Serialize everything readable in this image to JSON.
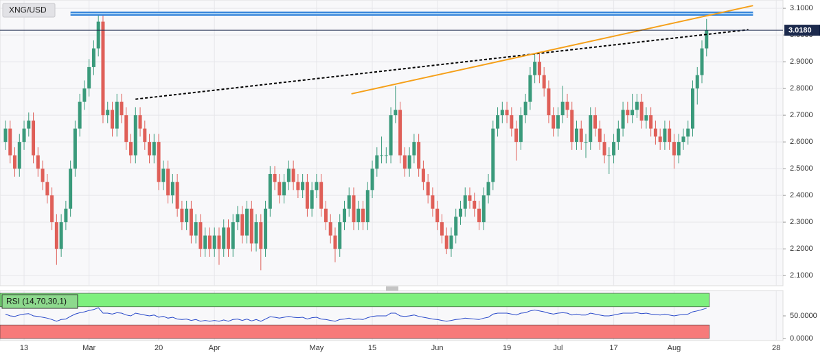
{
  "chart_data": {
    "type": "candlestick",
    "title": "XNG/USD",
    "categories": [
      null,
      null,
      null,
      null,
      "13",
      null,
      null,
      null,
      null,
      null,
      null,
      null,
      null,
      null,
      null,
      null,
      null,
      null,
      "Mar",
      null,
      null,
      null,
      null,
      null,
      null,
      null,
      null,
      null,
      null,
      null,
      null,
      null,
      null,
      "20",
      null,
      null,
      null,
      null,
      null,
      null,
      null,
      null,
      null,
      null,
      null,
      "Apr",
      null,
      null,
      null,
      null,
      null,
      null,
      null,
      null,
      null,
      null,
      null,
      null,
      null,
      null,
      null,
      null,
      null,
      null,
      null,
      null,
      null,
      "May",
      null,
      null,
      null,
      null,
      null,
      null,
      null,
      null,
      null,
      null,
      null,
      "15",
      null,
      null,
      null,
      null,
      null,
      null,
      null,
      null,
      null,
      null,
      null,
      null,
      null,
      "Jun",
      null,
      null,
      null,
      null,
      null,
      null,
      null,
      null,
      null,
      null,
      null,
      null,
      null,
      null,
      "19",
      null,
      null,
      null,
      null,
      null,
      null,
      null,
      null,
      null,
      null,
      "Jul",
      null,
      null,
      null,
      null,
      null,
      null,
      null,
      null,
      null,
      null,
      null,
      "17",
      null,
      null,
      null,
      null,
      null,
      null,
      null,
      null,
      null,
      null,
      null,
      null,
      "Aug",
      null,
      null,
      null,
      null,
      null,
      null,
      null,
      null,
      null,
      null,
      null,
      null,
      null,
      null,
      null,
      null,
      null,
      null,
      null,
      null,
      null,
      "28",
      null
    ],
    "ohlc": [
      [
        2.6,
        2.68,
        2.57,
        2.65
      ],
      [
        2.65,
        2.68,
        2.52,
        2.55
      ],
      [
        2.55,
        2.58,
        2.47,
        2.5
      ],
      [
        2.5,
        2.63,
        2.47,
        2.6
      ],
      [
        2.6,
        2.68,
        2.57,
        2.65
      ],
      [
        2.65,
        2.71,
        2.62,
        2.68
      ],
      [
        2.68,
        2.71,
        2.52,
        2.55
      ],
      [
        2.55,
        2.58,
        2.47,
        2.5
      ],
      [
        2.5,
        2.53,
        2.42,
        2.45
      ],
      [
        2.45,
        2.48,
        2.37,
        2.4
      ],
      [
        2.4,
        2.43,
        2.27,
        2.3
      ],
      [
        2.3,
        2.33,
        2.14,
        2.2
      ],
      [
        2.2,
        2.33,
        2.17,
        2.3
      ],
      [
        2.3,
        2.38,
        2.27,
        2.35
      ],
      [
        2.35,
        2.53,
        2.32,
        2.5
      ],
      [
        2.5,
        2.68,
        2.47,
        2.65
      ],
      [
        2.65,
        2.78,
        2.62,
        2.75
      ],
      [
        2.75,
        2.83,
        2.72,
        2.8
      ],
      [
        2.8,
        2.91,
        2.77,
        2.88
      ],
      [
        2.88,
        2.98,
        2.85,
        2.95
      ],
      [
        2.95,
        3.08,
        2.92,
        3.05
      ],
      [
        3.05,
        3.08,
        2.67,
        2.7
      ],
      [
        2.7,
        2.75,
        2.67,
        2.72
      ],
      [
        2.72,
        2.75,
        2.62,
        2.65
      ],
      [
        2.65,
        2.78,
        2.62,
        2.75
      ],
      [
        2.75,
        2.78,
        2.67,
        2.7
      ],
      [
        2.7,
        2.73,
        2.57,
        2.6
      ],
      [
        2.6,
        2.63,
        2.52,
        2.55
      ],
      [
        2.55,
        2.73,
        2.52,
        2.7
      ],
      [
        2.7,
        2.73,
        2.62,
        2.65
      ],
      [
        2.65,
        2.68,
        2.57,
        2.6
      ],
      [
        2.6,
        2.63,
        2.52,
        2.55
      ],
      [
        2.55,
        2.63,
        2.52,
        2.6
      ],
      [
        2.6,
        2.63,
        2.42,
        2.45
      ],
      [
        2.45,
        2.53,
        2.42,
        2.5
      ],
      [
        2.5,
        2.53,
        2.37,
        2.4
      ],
      [
        2.4,
        2.48,
        2.37,
        2.45
      ],
      [
        2.45,
        2.48,
        2.32,
        2.35
      ],
      [
        2.35,
        2.38,
        2.27,
        2.3
      ],
      [
        2.3,
        2.38,
        2.27,
        2.35
      ],
      [
        2.35,
        2.38,
        2.22,
        2.25
      ],
      [
        2.25,
        2.33,
        2.22,
        2.3
      ],
      [
        2.3,
        2.33,
        2.17,
        2.2
      ],
      [
        2.2,
        2.28,
        2.17,
        2.25
      ],
      [
        2.25,
        2.28,
        2.17,
        2.2
      ],
      [
        2.2,
        2.28,
        2.17,
        2.25
      ],
      [
        2.25,
        2.28,
        2.14,
        2.2
      ],
      [
        2.2,
        2.31,
        2.17,
        2.28
      ],
      [
        2.28,
        2.31,
        2.17,
        2.2
      ],
      [
        2.2,
        2.33,
        2.17,
        2.3
      ],
      [
        2.3,
        2.36,
        2.27,
        2.33
      ],
      [
        2.33,
        2.36,
        2.22,
        2.25
      ],
      [
        2.25,
        2.38,
        2.22,
        2.35
      ],
      [
        2.35,
        2.38,
        2.19,
        2.22
      ],
      [
        2.22,
        2.33,
        2.19,
        2.3
      ],
      [
        2.3,
        2.33,
        2.12,
        2.2
      ],
      [
        2.2,
        2.38,
        2.17,
        2.35
      ],
      [
        2.35,
        2.51,
        2.32,
        2.48
      ],
      [
        2.48,
        2.51,
        2.42,
        2.45
      ],
      [
        2.45,
        2.48,
        2.37,
        2.4
      ],
      [
        2.4,
        2.48,
        2.37,
        2.45
      ],
      [
        2.45,
        2.53,
        2.42,
        2.5
      ],
      [
        2.5,
        2.53,
        2.42,
        2.45
      ],
      [
        2.45,
        2.48,
        2.39,
        2.42
      ],
      [
        2.42,
        2.48,
        2.39,
        2.45
      ],
      [
        2.45,
        2.48,
        2.32,
        2.35
      ],
      [
        2.35,
        2.45,
        2.32,
        2.42
      ],
      [
        2.42,
        2.48,
        2.39,
        2.45
      ],
      [
        2.45,
        2.48,
        2.32,
        2.35
      ],
      [
        2.35,
        2.38,
        2.27,
        2.3
      ],
      [
        2.3,
        2.33,
        2.22,
        2.25
      ],
      [
        2.25,
        2.28,
        2.15,
        2.2
      ],
      [
        2.2,
        2.33,
        2.17,
        2.3
      ],
      [
        2.3,
        2.38,
        2.27,
        2.35
      ],
      [
        2.35,
        2.43,
        2.32,
        2.4
      ],
      [
        2.4,
        2.43,
        2.27,
        2.3
      ],
      [
        2.3,
        2.38,
        2.27,
        2.35
      ],
      [
        2.35,
        2.38,
        2.27,
        2.3
      ],
      [
        2.3,
        2.45,
        2.27,
        2.42
      ],
      [
        2.42,
        2.53,
        2.39,
        2.5
      ],
      [
        2.5,
        2.58,
        2.47,
        2.55
      ],
      [
        2.55,
        2.62,
        2.52,
        2.55
      ],
      [
        2.55,
        2.58,
        2.52,
        2.55
      ],
      [
        2.55,
        2.73,
        2.52,
        2.7
      ],
      [
        2.7,
        2.81,
        2.67,
        2.72
      ],
      [
        2.72,
        2.75,
        2.52,
        2.55
      ],
      [
        2.55,
        2.58,
        2.47,
        2.5
      ],
      [
        2.5,
        2.58,
        2.47,
        2.55
      ],
      [
        2.55,
        2.63,
        2.52,
        2.6
      ],
      [
        2.6,
        2.63,
        2.47,
        2.5
      ],
      [
        2.5,
        2.53,
        2.42,
        2.45
      ],
      [
        2.45,
        2.48,
        2.37,
        2.4
      ],
      [
        2.4,
        2.43,
        2.32,
        2.35
      ],
      [
        2.35,
        2.38,
        2.27,
        2.3
      ],
      [
        2.3,
        2.33,
        2.22,
        2.25
      ],
      [
        2.25,
        2.28,
        2.18,
        2.2
      ],
      [
        2.2,
        2.28,
        2.17,
        2.25
      ],
      [
        2.25,
        2.35,
        2.22,
        2.32
      ],
      [
        2.32,
        2.38,
        2.29,
        2.35
      ],
      [
        2.35,
        2.43,
        2.32,
        2.4
      ],
      [
        2.4,
        2.43,
        2.35,
        2.38
      ],
      [
        2.38,
        2.41,
        2.32,
        2.35
      ],
      [
        2.35,
        2.38,
        2.27,
        2.3
      ],
      [
        2.3,
        2.43,
        2.27,
        2.4
      ],
      [
        2.4,
        2.48,
        2.37,
        2.45
      ],
      [
        2.45,
        2.68,
        2.42,
        2.65
      ],
      [
        2.65,
        2.73,
        2.62,
        2.7
      ],
      [
        2.7,
        2.75,
        2.67,
        2.72
      ],
      [
        2.72,
        2.75,
        2.67,
        2.7
      ],
      [
        2.7,
        2.73,
        2.62,
        2.65
      ],
      [
        2.65,
        2.68,
        2.53,
        2.6
      ],
      [
        2.6,
        2.73,
        2.57,
        2.7
      ],
      [
        2.7,
        2.78,
        2.67,
        2.75
      ],
      [
        2.75,
        2.88,
        2.72,
        2.85
      ],
      [
        2.85,
        2.93,
        2.82,
        2.9
      ],
      [
        2.9,
        2.93,
        2.82,
        2.85
      ],
      [
        2.85,
        2.88,
        2.77,
        2.8
      ],
      [
        2.8,
        2.83,
        2.67,
        2.7
      ],
      [
        2.7,
        2.73,
        2.62,
        2.65
      ],
      [
        2.65,
        2.73,
        2.62,
        2.7
      ],
      [
        2.7,
        2.81,
        2.67,
        2.75
      ],
      [
        2.75,
        2.78,
        2.69,
        2.72
      ],
      [
        2.72,
        2.75,
        2.57,
        2.6
      ],
      [
        2.6,
        2.68,
        2.57,
        2.65
      ],
      [
        2.65,
        2.68,
        2.57,
        2.6
      ],
      [
        2.6,
        2.63,
        2.54,
        2.6
      ],
      [
        2.6,
        2.73,
        2.57,
        2.7
      ],
      [
        2.7,
        2.73,
        2.62,
        2.65
      ],
      [
        2.65,
        2.68,
        2.57,
        2.6
      ],
      [
        2.6,
        2.63,
        2.52,
        2.55
      ],
      [
        2.55,
        2.58,
        2.48,
        2.55
      ],
      [
        2.55,
        2.63,
        2.52,
        2.6
      ],
      [
        2.6,
        2.68,
        2.57,
        2.65
      ],
      [
        2.65,
        2.75,
        2.62,
        2.72
      ],
      [
        2.72,
        2.75,
        2.67,
        2.7
      ],
      [
        2.7,
        2.78,
        2.67,
        2.72
      ],
      [
        2.72,
        2.78,
        2.69,
        2.75
      ],
      [
        2.75,
        2.78,
        2.65,
        2.68
      ],
      [
        2.68,
        2.73,
        2.65,
        2.7
      ],
      [
        2.7,
        2.73,
        2.62,
        2.65
      ],
      [
        2.65,
        2.68,
        2.59,
        2.62
      ],
      [
        2.62,
        2.65,
        2.57,
        2.6
      ],
      [
        2.6,
        2.68,
        2.57,
        2.65
      ],
      [
        2.65,
        2.68,
        2.57,
        2.6
      ],
      [
        2.6,
        2.63,
        2.5,
        2.55
      ],
      [
        2.55,
        2.63,
        2.52,
        2.6
      ],
      [
        2.6,
        2.65,
        2.57,
        2.62
      ],
      [
        2.62,
        2.68,
        2.59,
        2.65
      ],
      [
        2.65,
        2.83,
        2.62,
        2.8
      ],
      [
        2.8,
        2.88,
        2.74,
        2.85
      ],
      [
        2.85,
        2.98,
        2.82,
        2.95
      ],
      [
        2.95,
        3.06,
        2.92,
        3.018
      ],
      null,
      null,
      null,
      null,
      null,
      null,
      null,
      null,
      null,
      null,
      null,
      null,
      null,
      null,
      null,
      null
    ],
    "up_color": "#3a9a7b",
    "down_color": "#df5f58",
    "ylim": [
      2.062,
      3.131
    ],
    "yticks": [
      {
        "value": 2.1,
        "label": "2.1000"
      },
      {
        "value": 2.2,
        "label": "2.2000"
      },
      {
        "value": 2.3,
        "label": "2.3000"
      },
      {
        "value": 2.4,
        "label": "2.4000"
      },
      {
        "value": 2.5,
        "label": "2.5000"
      },
      {
        "value": 2.6,
        "label": "2.6000"
      },
      {
        "value": 2.7,
        "label": "2.7000"
      },
      {
        "value": 2.8,
        "label": "2.8000"
      },
      {
        "value": 2.9,
        "label": "2.9000"
      },
      {
        "value": 3.0,
        "label": "3.0000"
      },
      {
        "value": 3.1,
        "label": "3.1000"
      }
    ],
    "grid": true,
    "last_price": {
      "value": 3.018,
      "label": "3.0180",
      "color": "#1c2a4d"
    },
    "lines": [
      {
        "color": "#2f80d8",
        "dash": "solid",
        "from": [
          14,
          3.08
        ],
        "to": [
          161,
          3.08
        ]
      },
      {
        "color": "#000000",
        "dash": "dashed",
        "from": [
          28,
          2.76
        ],
        "to": [
          160,
          3.02
        ]
      },
      {
        "color": "#f5a01a",
        "dash": "solid",
        "from": [
          74.5,
          2.78
        ],
        "to": [
          161,
          3.11
        ]
      }
    ],
    "rsi": {
      "label": "RSI (14,70,30,1)",
      "color": "#2747c9",
      "ylim": [
        0,
        100
      ],
      "yticks": [
        {
          "value": 0,
          "label": "0.0000"
        },
        {
          "value": 50,
          "label": "50.0000"
        }
      ],
      "overbought": 70,
      "oversold": 30,
      "values": [
        54,
        50,
        49,
        52,
        54,
        55,
        50,
        49,
        47,
        45,
        42,
        38,
        42,
        43,
        49,
        54,
        57,
        59,
        62,
        64,
        68,
        56,
        56,
        54,
        57,
        56,
        52,
        50,
        56,
        54,
        52,
        50,
        52,
        47,
        49,
        45,
        47,
        43,
        42,
        43,
        40,
        42,
        38,
        40,
        38,
        40,
        38,
        41,
        38,
        42,
        43,
        40,
        43,
        39,
        42,
        38,
        43,
        48,
        47,
        45,
        47,
        49,
        47,
        46,
        47,
        43,
        46,
        47,
        43,
        42,
        40,
        38,
        42,
        43,
        45,
        42,
        43,
        42,
        46,
        49,
        50,
        50,
        50,
        56,
        56,
        50,
        49,
        50,
        52,
        49,
        47,
        45,
        43,
        42,
        40,
        38,
        40,
        42,
        43,
        45,
        44,
        43,
        42,
        45,
        47,
        54,
        56,
        56,
        56,
        54,
        52,
        56,
        57,
        61,
        63,
        61,
        59,
        56,
        54,
        56,
        57,
        56,
        52,
        54,
        52,
        52,
        56,
        54,
        52,
        50,
        50,
        52,
        54,
        56,
        56,
        56,
        57,
        55,
        56,
        54,
        53,
        52,
        54,
        52,
        50,
        52,
        53,
        54,
        59,
        61,
        64,
        67,
        null,
        null,
        null,
        null,
        null,
        null,
        null,
        null,
        null,
        null,
        null,
        null,
        null,
        null,
        null,
        null
      ]
    }
  }
}
